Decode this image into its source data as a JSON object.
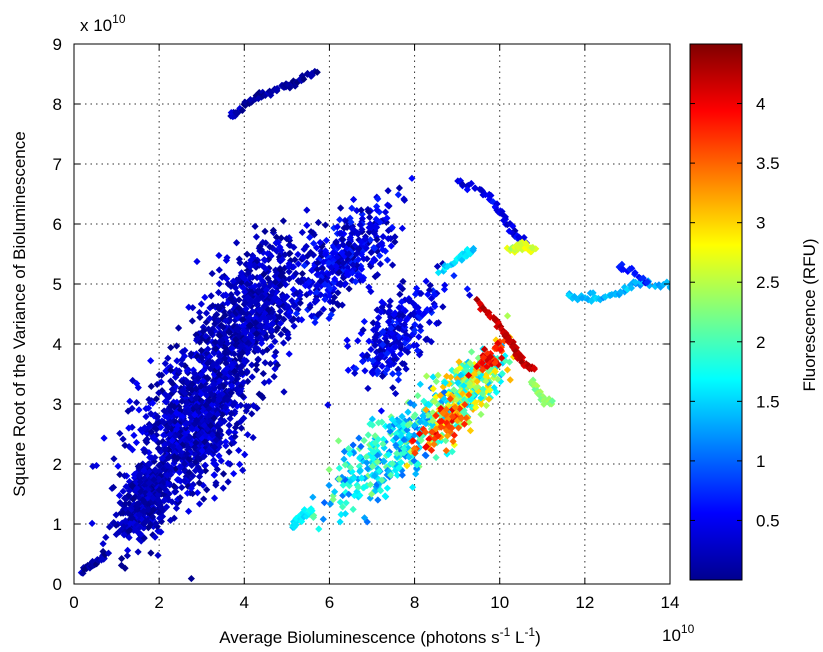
{
  "chart_data": {
    "type": "scatter",
    "title": "",
    "xlabel": "Average Bioluminescence (photons s^-1 L^-1)",
    "xlabel_parts": {
      "main": "Average Bioluminescence (photons s",
      "sup1": "-1",
      "mid": " L",
      "sup2": "-1",
      "end": ")"
    },
    "ylabel": "Square Root of the Variance of Bioluminescence",
    "x_exponent": {
      "base": "10",
      "exp": "10"
    },
    "y_exponent": {
      "prefix": "x 10",
      "exp": "10"
    },
    "x_scale_factor": "1e10",
    "y_scale_factor": "1e10",
    "xlim": [
      0,
      14
    ],
    "ylim": [
      0,
      9
    ],
    "xticks": [
      "0",
      "2",
      "4",
      "6",
      "8",
      "10",
      "12",
      "14"
    ],
    "yticks": [
      "0",
      "1",
      "2",
      "3",
      "4",
      "5",
      "6",
      "7",
      "8",
      "9"
    ],
    "grid": true,
    "colorbar": {
      "label": "Fluorescence (RFU)",
      "range": [
        0,
        4.5
      ],
      "ticks": [
        "0.5",
        "1",
        "1.5",
        "2",
        "2.5",
        "3",
        "3.5",
        "4"
      ],
      "colormap": "jet"
    },
    "marker": "diamond",
    "clusters": [
      {
        "cx": 2.8,
        "cy": 2.7,
        "sx": 1.3,
        "sy": 1.1,
        "n": 1000,
        "c0": 0.05,
        "c1": 0.55
      },
      {
        "cx": 4.2,
        "cy": 4.6,
        "sx": 1.1,
        "sy": 0.9,
        "n": 650,
        "c0": 0.05,
        "c1": 0.5
      },
      {
        "cx": 1.6,
        "cy": 1.3,
        "sx": 0.6,
        "sy": 0.5,
        "n": 350,
        "c0": 0.05,
        "c1": 0.45
      },
      {
        "cx": 6.3,
        "cy": 5.4,
        "sx": 1.1,
        "sy": 0.6,
        "n": 380,
        "c0": 0.1,
        "c1": 0.75
      },
      {
        "cx": 7.6,
        "cy": 4.2,
        "sx": 0.9,
        "sy": 0.6,
        "n": 250,
        "c0": 0.15,
        "c1": 0.75
      },
      {
        "cx": 7.4,
        "cy": 2.2,
        "sx": 1.3,
        "sy": 0.6,
        "n": 330,
        "c0": 1.0,
        "c1": 2.3
      },
      {
        "cx": 9.2,
        "cy": 3.2,
        "sx": 0.8,
        "sy": 0.45,
        "n": 330,
        "c0": 1.3,
        "c1": 3.2
      },
      {
        "cx": 8.6,
        "cy": 2.6,
        "sx": 0.6,
        "sy": 0.3,
        "n": 70,
        "c0": 3.2,
        "c1": 4.1
      },
      {
        "cx": 9.8,
        "cy": 3.8,
        "sx": 0.3,
        "sy": 0.2,
        "n": 40,
        "c0": 3.5,
        "c1": 4.2
      }
    ],
    "trails": [
      {
        "x": [
          4.0,
          4.4,
          4.9,
          5.2,
          5.7
        ],
        "y": [
          8.0,
          8.15,
          8.3,
          8.35,
          8.55
        ],
        "c": 0.1
      },
      {
        "x": [
          3.7,
          3.9
        ],
        "y": [
          7.8,
          7.9
        ],
        "c": 0.2
      },
      {
        "x": [
          9.0,
          9.6,
          10.0,
          10.4,
          10.6
        ],
        "y": [
          6.7,
          6.55,
          6.2,
          5.8,
          5.65
        ],
        "c": 0.45
      },
      {
        "x": [
          10.2,
          10.5,
          10.8
        ],
        "y": [
          5.6,
          5.62,
          5.58
        ],
        "c": 2.6
      },
      {
        "x": [
          8.6,
          9.1,
          9.4
        ],
        "y": [
          5.2,
          5.45,
          5.6
        ],
        "c": 1.6
      },
      {
        "x": [
          11.6,
          12.2,
          12.8,
          13.3,
          14.0
        ],
        "y": [
          4.8,
          4.75,
          4.85,
          5.05,
          4.95
        ],
        "c": 1.35
      },
      {
        "x": [
          12.8,
          13.5
        ],
        "y": [
          5.3,
          5.05
        ],
        "c": 0.7
      },
      {
        "x": [
          9.5,
          10.0,
          10.3,
          10.5,
          10.8
        ],
        "y": [
          4.7,
          4.3,
          4.0,
          3.75,
          3.55
        ],
        "c": 4.2
      },
      {
        "x": [
          10.7,
          11.0,
          11.2
        ],
        "y": [
          3.4,
          3.1,
          3.0
        ],
        "c": 2.3
      },
      {
        "x": [
          5.1,
          5.3,
          5.6
        ],
        "y": [
          0.95,
          1.1,
          1.25
        ],
        "c": 1.6
      },
      {
        "x": [
          0.2,
          0.5,
          0.8
        ],
        "y": [
          0.2,
          0.35,
          0.5
        ],
        "c": 0.15
      }
    ],
    "random_seed": 7
  }
}
